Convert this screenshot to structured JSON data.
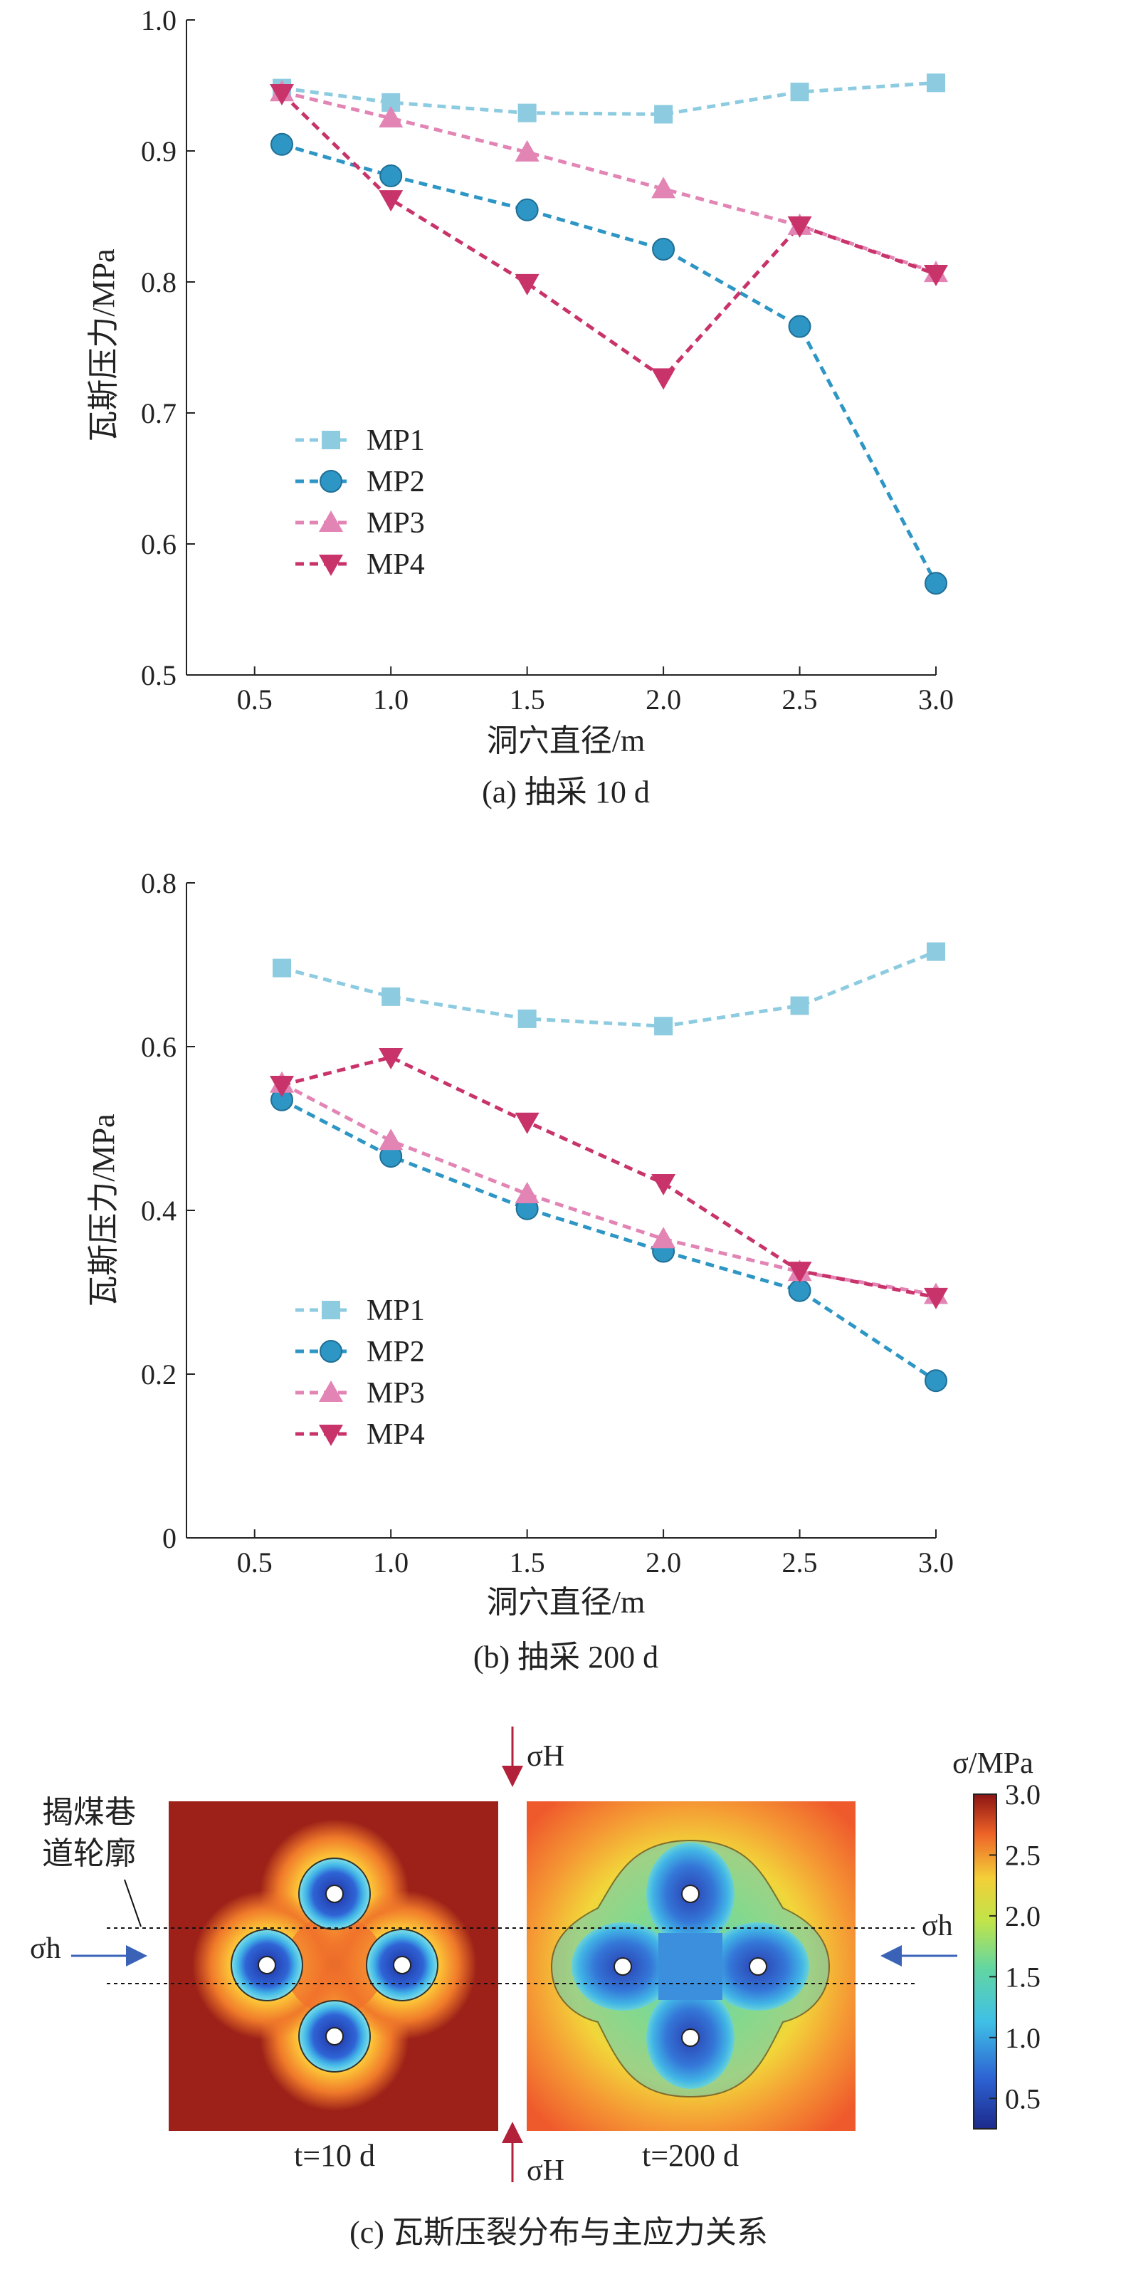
{
  "chart_data": [
    {
      "type": "line",
      "caption": "(a) 抽采 10 d",
      "xlabel": "洞穴直径/m",
      "ylabel": "瓦斯压力/MPa",
      "x": [
        0.6,
        1.0,
        1.5,
        2.0,
        2.5,
        3.0
      ],
      "xticks": [
        "0.5",
        "1.0",
        "1.5",
        "2.0",
        "2.5",
        "3.0"
      ],
      "yticks": [
        "0.5",
        "0.6",
        "0.7",
        "0.8",
        "0.9",
        "1.0"
      ],
      "xlim": [
        0.25,
        3.0
      ],
      "ylim": [
        0.5,
        1.0
      ],
      "legend": "left-middle",
      "series": [
        {
          "name": "MP1",
          "marker": "square",
          "color": "#8ccbe0",
          "values": [
            0.948,
            0.937,
            0.929,
            0.928,
            0.945,
            0.952
          ]
        },
        {
          "name": "MP2",
          "marker": "circle",
          "color": "#2e96c4",
          "values": [
            0.905,
            0.881,
            0.855,
            0.825,
            0.766,
            0.57
          ]
        },
        {
          "name": "MP3",
          "marker": "triangle-up",
          "color": "#e284b4",
          "values": [
            0.945,
            0.925,
            0.899,
            0.871,
            0.843,
            0.807
          ]
        },
        {
          "name": "MP4",
          "marker": "triangle-down",
          "color": "#c8336a",
          "values": [
            0.944,
            0.863,
            0.799,
            0.727,
            0.843,
            0.806
          ]
        }
      ]
    },
    {
      "type": "line",
      "caption": "(b) 抽采 200 d",
      "xlabel": "洞穴直径/m",
      "ylabel": "瓦斯压力/MPa",
      "x": [
        0.6,
        1.0,
        1.5,
        2.0,
        2.5,
        3.0
      ],
      "xticks": [
        "0.5",
        "1.0",
        "1.5",
        "2.0",
        "2.5",
        "3.0"
      ],
      "yticks": [
        "0",
        "0.2",
        "0.4",
        "0.6",
        "0.8"
      ],
      "xlim": [
        0.25,
        3.0
      ],
      "ylim": [
        0,
        0.8
      ],
      "legend": "left-bottom",
      "series": [
        {
          "name": "MP1",
          "marker": "square",
          "color": "#8ccbe0",
          "values": [
            0.696,
            0.661,
            0.634,
            0.625,
            0.65,
            0.716
          ]
        },
        {
          "name": "MP2",
          "marker": "circle",
          "color": "#2e96c4",
          "values": [
            0.535,
            0.466,
            0.402,
            0.35,
            0.302,
            0.192
          ]
        },
        {
          "name": "MP3",
          "marker": "triangle-up",
          "color": "#e284b4",
          "values": [
            0.555,
            0.485,
            0.42,
            0.365,
            0.325,
            0.297
          ]
        },
        {
          "name": "MP4",
          "marker": "triangle-down",
          "color": "#c8336a",
          "values": [
            0.553,
            0.587,
            0.508,
            0.433,
            0.326,
            0.294
          ]
        }
      ]
    },
    {
      "type": "heatmap",
      "caption": "(c) 瓦斯压裂分布与主应力关系",
      "panels": [
        "t=10 d",
        "t=200 d"
      ],
      "colorbar_title": "σ/MPa",
      "colorbar_ticks": [
        "3.0",
        "2.5",
        "2.0",
        "1.5",
        "1.0",
        "0.5"
      ],
      "colorbar_range": [
        0.25,
        3.0
      ],
      "annotations": {
        "sigma_H": "σH",
        "sigma_h": "σh",
        "roadway_label_line1": "揭煤巷",
        "roadway_label_line2": "道轮廓"
      }
    }
  ]
}
